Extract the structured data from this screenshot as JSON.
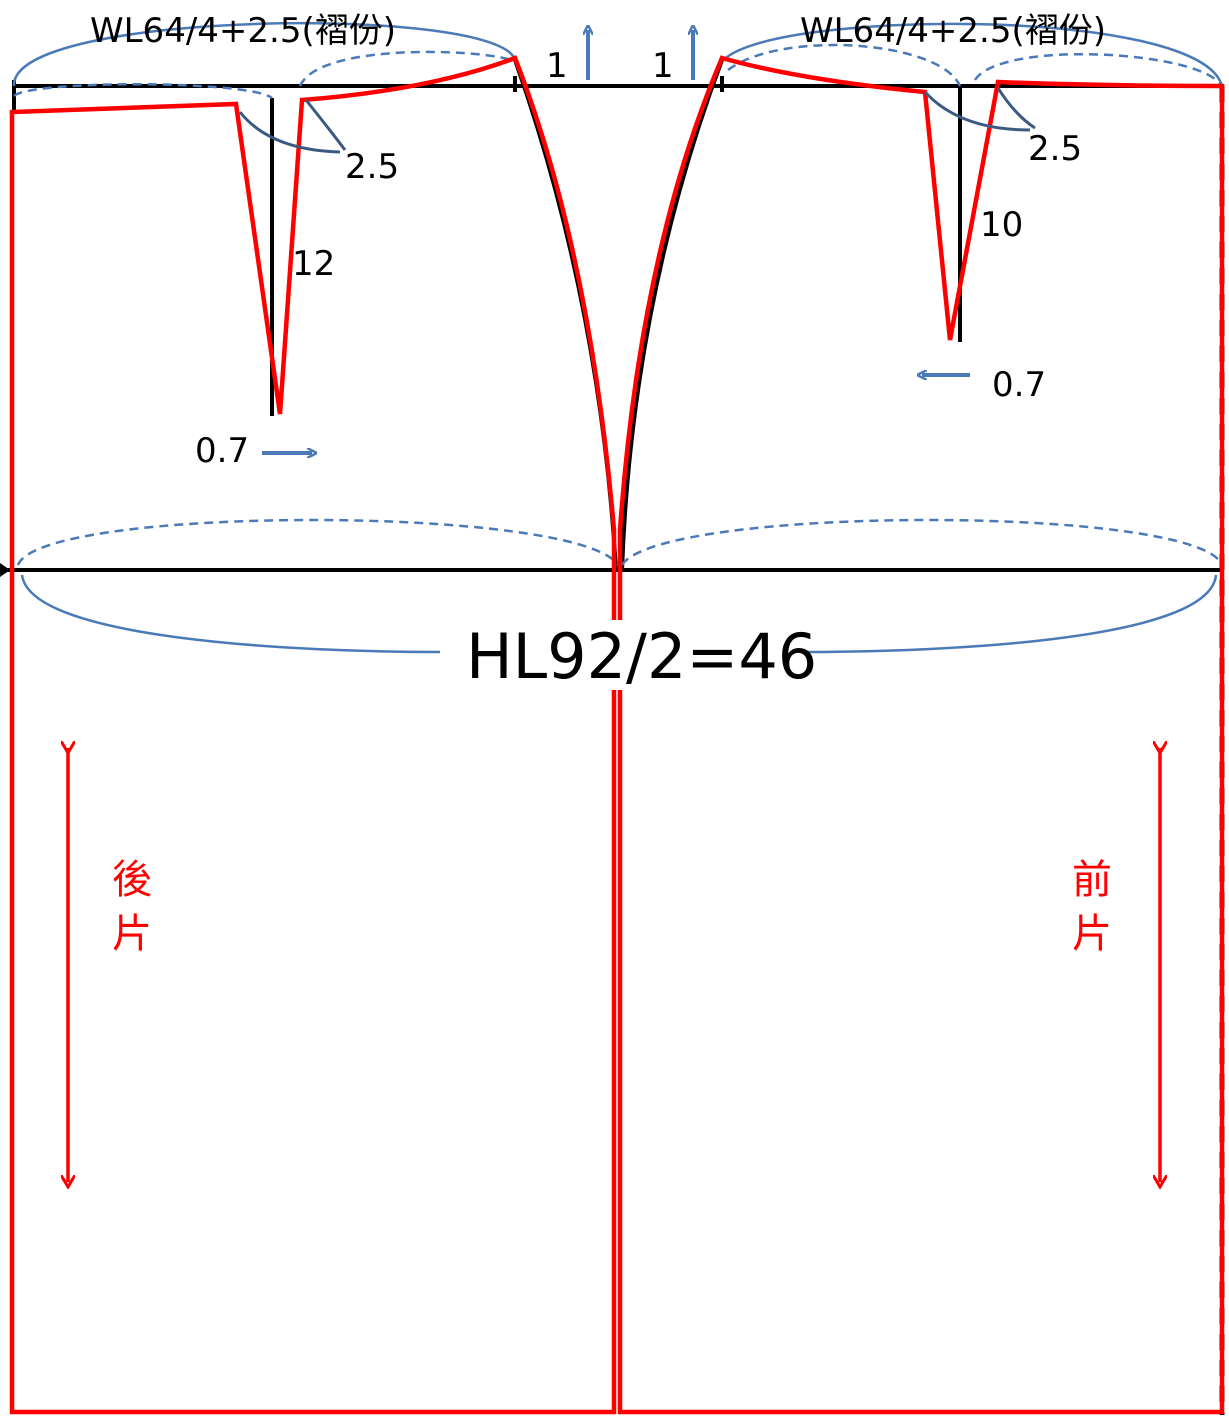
{
  "labels": {
    "back_waist": "WL64/4+2.5(褶份)",
    "front_waist": "WL64/4+2.5(褶份)",
    "raise_back": "1",
    "raise_front": "1",
    "back_dart_width": "2.5",
    "back_dart_length": "12",
    "back_dart_shift": "0.7",
    "front_dart_width": "2.5",
    "front_dart_length": "10",
    "front_dart_shift": "0.7",
    "hip_line": "HL92/2=46",
    "back_piece_1": "後",
    "back_piece_2": "片",
    "front_piece_1": "前",
    "front_piece_2": "片"
  },
  "colors": {
    "pattern_red": "#ff0000",
    "construction_black": "#000000",
    "measure_blue": "#4a7ab8"
  }
}
